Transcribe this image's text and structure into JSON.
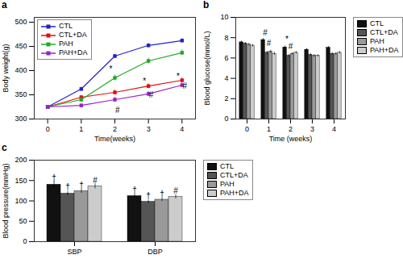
{
  "chart_data": [
    {
      "type": "line",
      "title": "a",
      "xlabel": "Time(weeks)",
      "ylabel": "Body weight(g)",
      "x": [
        0,
        1,
        2,
        3,
        4
      ],
      "xlim": [
        -0.4,
        4.4
      ],
      "xticks": [
        0,
        1,
        2,
        3,
        4
      ],
      "ylim": [
        300,
        510
      ],
      "yticks": [
        300,
        350,
        400,
        450,
        500
      ],
      "grid": false,
      "legend": "upper left",
      "series": [
        {
          "name": "CTL",
          "color": "#2222cc",
          "marker": "square",
          "values": [
            325,
            362,
            430,
            452,
            462
          ],
          "errors": [
            3,
            4,
            4,
            4,
            4
          ]
        },
        {
          "name": "CTL+DA",
          "color": "#dd1111",
          "marker": "square",
          "values": [
            325,
            345,
            355,
            368,
            380
          ],
          "errors": [
            3,
            4,
            5,
            5,
            5
          ]
        },
        {
          "name": "PAH",
          "color": "#22aa22",
          "marker": "square",
          "values": [
            325,
            340,
            385,
            420,
            437
          ],
          "errors": [
            3,
            5,
            6,
            6,
            6
          ]
        },
        {
          "name": "PAH+DA",
          "color": "#9922cc",
          "marker": "square",
          "values": [
            325,
            328,
            340,
            352,
            370
          ],
          "errors": [
            3,
            4,
            5,
            5,
            5
          ]
        }
      ],
      "annotations": [
        {
          "text": "*",
          "x": 1.88,
          "y": 398
        },
        {
          "text": "#",
          "x": 2.08,
          "y": 312
        },
        {
          "text": "*",
          "x": 2.88,
          "y": 372
        },
        {
          "text": "#",
          "x": 3.08,
          "y": 344
        },
        {
          "text": "*",
          "x": 3.88,
          "y": 382
        },
        {
          "text": "#",
          "x": 4.08,
          "y": 362
        }
      ]
    },
    {
      "type": "bar",
      "title": "b",
      "xlabel": "Time (weeks)",
      "ylabel": "Blood glucose(mmol/L)",
      "x": [
        0,
        1,
        2,
        3,
        4
      ],
      "xlim": [
        -0.52,
        4.52
      ],
      "xticks": [
        0,
        1,
        2,
        3,
        4
      ],
      "ylim": [
        0,
        10
      ],
      "yticks": [
        0,
        2,
        4,
        6,
        8,
        10
      ],
      "grid": false,
      "legend": "right",
      "series": [
        {
          "name": "CTL",
          "color": "#111111",
          "values": [
            7.55,
            7.78,
            7.05,
            6.82,
            7.02
          ],
          "errors": [
            0.12,
            0.14,
            0.14,
            0.12,
            0.12
          ]
        },
        {
          "name": "CTL+DA",
          "color": "#555555",
          "values": [
            7.42,
            6.52,
            6.22,
            6.32,
            6.42
          ],
          "errors": [
            0.12,
            0.14,
            0.12,
            0.12,
            0.12
          ]
        },
        {
          "name": "PAH",
          "color": "#999999",
          "values": [
            7.32,
            6.62,
            6.42,
            6.22,
            6.42
          ],
          "errors": [
            0.12,
            0.14,
            0.12,
            0.12,
            0.12
          ]
        },
        {
          "name": "PAH+DA",
          "color": "#cccccc",
          "values": [
            7.22,
            6.42,
            6.52,
            6.22,
            6.52
          ],
          "errors": [
            0.12,
            0.14,
            0.12,
            0.12,
            0.12
          ]
        }
      ],
      "annotations": [
        {
          "text": "#",
          "x": 0.83,
          "y": 8.2
        },
        {
          "text": "#",
          "x": 1.0,
          "y": 7.15
        },
        {
          "text": "*",
          "x": 1.83,
          "y": 7.6
        },
        {
          "text": "#",
          "x": 2.0,
          "y": 6.9
        }
      ]
    },
    {
      "type": "bar",
      "title": "c",
      "ylabel": "Blood pressure(mmHg)",
      "categories": [
        "SBP",
        "DBP"
      ],
      "ylim": [
        0,
        200
      ],
      "yticks": [
        0,
        50,
        100,
        150,
        200
      ],
      "grid": false,
      "legend": "right",
      "series": [
        {
          "name": "CTL",
          "color": "#111111",
          "values": [
            140,
            112
          ],
          "errors": [
            8,
            5
          ]
        },
        {
          "name": "CTL+DA",
          "color": "#555555",
          "values": [
            118,
            98
          ],
          "errors": [
            5,
            4
          ]
        },
        {
          "name": "PAH",
          "color": "#999999",
          "values": [
            124,
            103
          ],
          "errors": [
            5,
            4
          ]
        },
        {
          "name": "PAH+DA",
          "color": "#cccccc",
          "values": [
            136,
            110
          ],
          "errors": [
            6,
            5
          ]
        }
      ],
      "annotations": [
        {
          "text": "†",
          "category": "SBP",
          "series": "CTL",
          "y": 150
        },
        {
          "text": "†",
          "category": "SBP",
          "series": "CTL+DA",
          "y": 128
        },
        {
          "text": "†",
          "category": "SBP",
          "series": "PAH",
          "y": 132
        },
        {
          "text": "#",
          "category": "SBP",
          "series": "PAH+DA",
          "y": 143
        },
        {
          "text": "†",
          "category": "DBP",
          "series": "CTL",
          "y": 119
        },
        {
          "text": "†",
          "category": "DBP",
          "series": "CTL+DA",
          "y": 105
        },
        {
          "text": "†",
          "category": "DBP",
          "series": "PAH",
          "y": 110
        },
        {
          "text": "#",
          "category": "DBP",
          "series": "PAH+DA",
          "y": 118
        }
      ]
    }
  ]
}
